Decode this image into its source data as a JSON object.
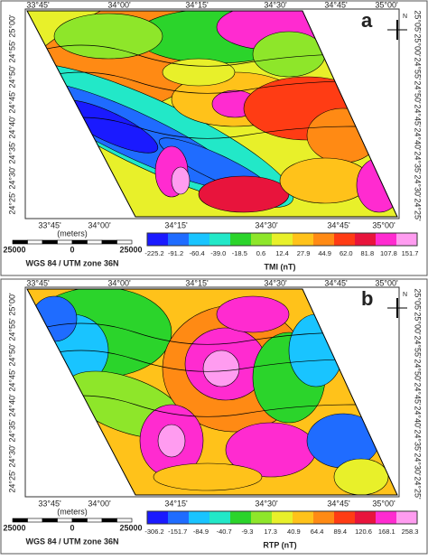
{
  "panels": [
    {
      "label": "a",
      "north": "N",
      "top_labels": [
        "33°45'",
        "34°00'",
        "34°15'",
        "34°30'",
        "34°45'",
        "35°00'"
      ],
      "bottom_labels": [
        "33°45'",
        "34°00'",
        "34°15'",
        "34°30'",
        "34°45'",
        "35°00'"
      ],
      "left_labels": [
        "24°25'",
        "24°30'",
        "24°35'",
        "24°40'",
        "24°45'",
        "24°50'",
        "24°55'",
        "25°00'"
      ],
      "right_labels": [
        "24°25'",
        "24°30'",
        "24°35'",
        "24°40'",
        "24°45'",
        "24°50'",
        "24°55'",
        "25°00'",
        "25°05'"
      ],
      "scale": {
        "unit": "(meters)",
        "ticks": [
          "25000",
          "0",
          "25000"
        ],
        "datum": "WGS 84 / UTM zone 36N"
      },
      "colorbar": {
        "title": "TMI (nT)",
        "ticks": [
          "-225.2",
          "-91.2",
          "-60.4",
          "-39.0",
          "-18.5",
          "0.6",
          "12.4",
          "27.9",
          "44.9",
          "62.0",
          "81.8",
          "107.8",
          "151.7"
        ],
        "colors": [
          "#1a1aff",
          "#1f6cff",
          "#19c4ff",
          "#22e8c8",
          "#2bd42b",
          "#8ee62a",
          "#e8f02a",
          "#ffc21a",
          "#ff8a14",
          "#ff3c14",
          "#e8143c",
          "#ff2bd0",
          "#ff9cf0"
        ]
      }
    },
    {
      "label": "b",
      "north": "N",
      "top_labels": [
        "33°45'",
        "34°00'",
        "34°15'",
        "34°30'",
        "34°45'",
        "35°00'"
      ],
      "bottom_labels": [
        "33°45'",
        "34°00'",
        "34°15'",
        "34°30'",
        "34°45'",
        "35°00'"
      ],
      "left_labels": [
        "24°25'",
        "24°30'",
        "24°35'",
        "24°40'",
        "24°45'",
        "24°50'",
        "24°55'",
        "25°00'"
      ],
      "right_labels": [
        "24°25'",
        "24°30'",
        "24°35'",
        "24°40'",
        "24°45'",
        "24°50'",
        "24°55'",
        "25°00'",
        "25°05'"
      ],
      "scale": {
        "unit": "(meters)",
        "ticks": [
          "25000",
          "0",
          "25000"
        ],
        "datum": "WGS 84 / UTM zone 36N"
      },
      "colorbar": {
        "title": "RTP (nT)",
        "ticks": [
          "-306.2",
          "-151.7",
          "-84.9",
          "-40.7",
          "-9.3",
          "17.3",
          "40.9",
          "64.4",
          "89.4",
          "120.6",
          "168.1",
          "258.3"
        ],
        "colors": [
          "#1a1aff",
          "#1f6cff",
          "#19c4ff",
          "#22e8c8",
          "#2bd42b",
          "#8ee62a",
          "#e8f02a",
          "#ffc21a",
          "#ff8a14",
          "#ff3c14",
          "#e8143c",
          "#ff2bd0",
          "#ff9cf0"
        ]
      }
    }
  ]
}
